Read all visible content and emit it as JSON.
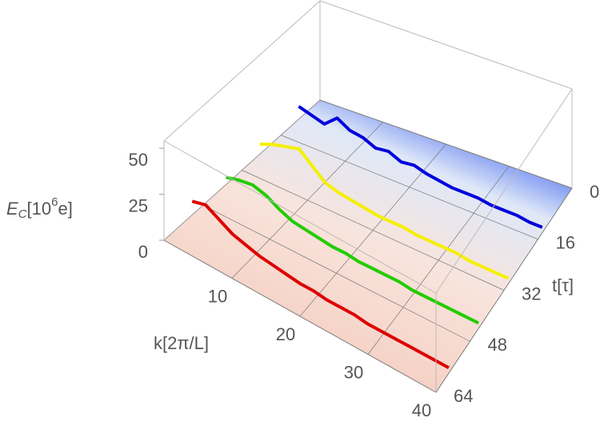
{
  "chart_data": {
    "type": "line3d",
    "zlabel_parts": [
      "E",
      "C",
      "[10",
      "6",
      "e]"
    ],
    "xlabel": "k[2π/L]",
    "ylabel": "t[τ]",
    "xlim": [
      0,
      40
    ],
    "xticks": [
      10,
      20,
      30,
      40
    ],
    "ylim": [
      0,
      64
    ],
    "yticks": [
      0,
      16,
      32,
      48,
      64
    ],
    "zlim": [
      0,
      54
    ],
    "zticks": [
      0,
      25,
      50
    ],
    "x": [
      2,
      4,
      6,
      8,
      10,
      12,
      14,
      16,
      18,
      20,
      22,
      24,
      26,
      28,
      30,
      32,
      34,
      36,
      38,
      40
    ],
    "series": [
      {
        "t": 14,
        "color": "#0000dd",
        "values": [
          16,
          14,
          12,
          18,
          14,
          13,
          10,
          11,
          8,
          9,
          7,
          6,
          5,
          5,
          5,
          4,
          4,
          4,
          3,
          3
        ]
      },
      {
        "t": 30,
        "color": "#f5f000",
        "values": [
          15,
          18,
          20,
          22,
          16,
          10,
          8,
          7,
          6,
          5,
          5,
          5,
          4,
          4,
          4,
          4,
          3,
          3,
          3,
          3
        ]
      },
      {
        "t": 44,
        "color": "#22cc00",
        "values": [
          14,
          16,
          17,
          15,
          11,
          8,
          7,
          6,
          5,
          5,
          4,
          4,
          4,
          4,
          3,
          3,
          3,
          3,
          3,
          3
        ]
      },
      {
        "t": 58,
        "color": "#dd0000",
        "values": [
          18,
          20,
          16,
          12,
          10,
          8,
          7,
          6,
          5,
          5,
          4,
          4,
          4,
          3,
          3,
          3,
          3,
          3,
          3,
          3
        ]
      }
    ]
  }
}
